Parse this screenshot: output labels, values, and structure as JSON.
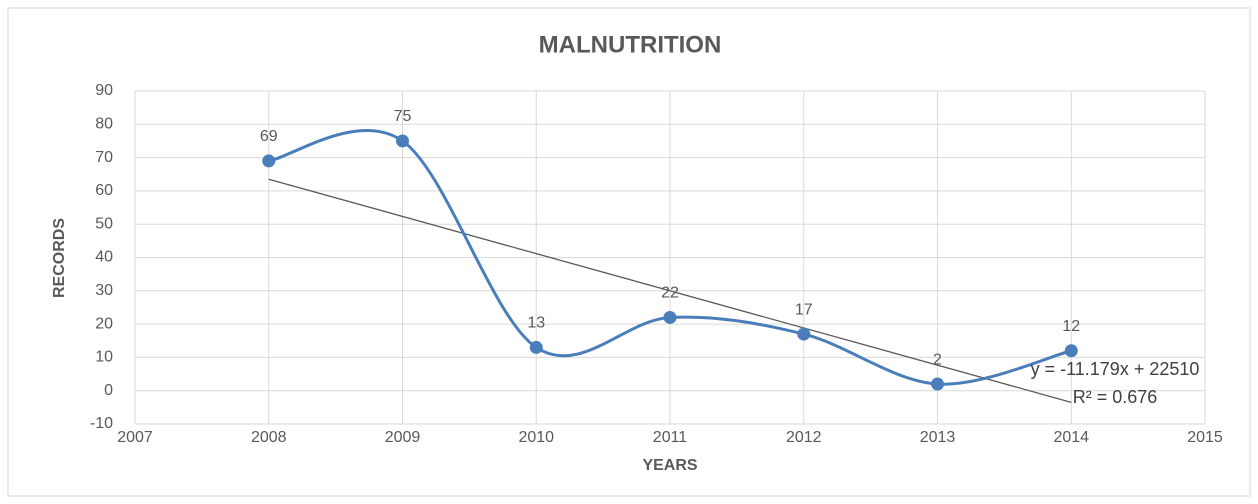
{
  "chart_data": {
    "type": "line",
    "title": "MALNUTRITION",
    "x_label": "YEARS",
    "y_label": "RECORDS",
    "x": [
      2008,
      2009,
      2010,
      2011,
      2012,
      2013,
      2014
    ],
    "series": [
      {
        "name": "Records",
        "color": "#4a7ebb",
        "values": [
          69,
          75,
          13,
          22,
          17,
          2,
          12
        ]
      }
    ],
    "trendline": {
      "x": [
        2008,
        2014
      ],
      "values": [
        63.5,
        -3.5
      ],
      "color": "#595959"
    },
    "annotations": [
      "y = -11.179x + 22510",
      "R² = 0.676"
    ],
    "smooth": true,
    "xlim": [
      2007,
      2015
    ],
    "xticks": [
      2007,
      2008,
      2009,
      2010,
      2011,
      2012,
      2013,
      2014,
      2015
    ],
    "ylim": [
      -10,
      90
    ],
    "yticks": [
      -10,
      0,
      10,
      20,
      30,
      40,
      50,
      60,
      70,
      80,
      90
    ],
    "grid": true
  }
}
